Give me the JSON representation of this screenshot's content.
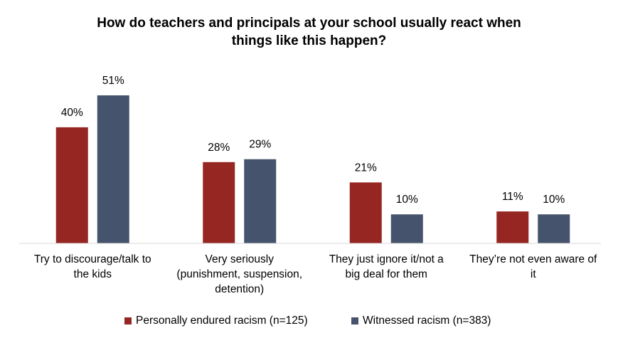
{
  "chart_data": {
    "type": "bar",
    "title": "How do teachers and principals at your school usually react when things like this happen?",
    "title_lines": [
      "How do teachers and principals at your school usually react when",
      "things like this happen?"
    ],
    "categories": [
      [
        "Try to discourage/talk to",
        "the kids"
      ],
      [
        "Very seriously",
        "(punishment, suspension,",
        "detention)"
      ],
      [
        "They just ignore it/not a",
        "big deal for them"
      ],
      [
        "They’re not even aware of",
        "it"
      ]
    ],
    "series": [
      {
        "name": "Personally endured racism (n=125)",
        "color": "#962622",
        "values": [
          40,
          28,
          21,
          11
        ],
        "labels": [
          "40%",
          "28%",
          "21%",
          "11%"
        ]
      },
      {
        "name": "Witnessed racism (n=383)",
        "color": "#45546c",
        "values": [
          51,
          29,
          10,
          10
        ],
        "labels": [
          "51%",
          "29%",
          "10%",
          "10%"
        ]
      }
    ],
    "ylim": [
      0,
      51
    ],
    "grid": false,
    "legend_position": "bottom"
  }
}
